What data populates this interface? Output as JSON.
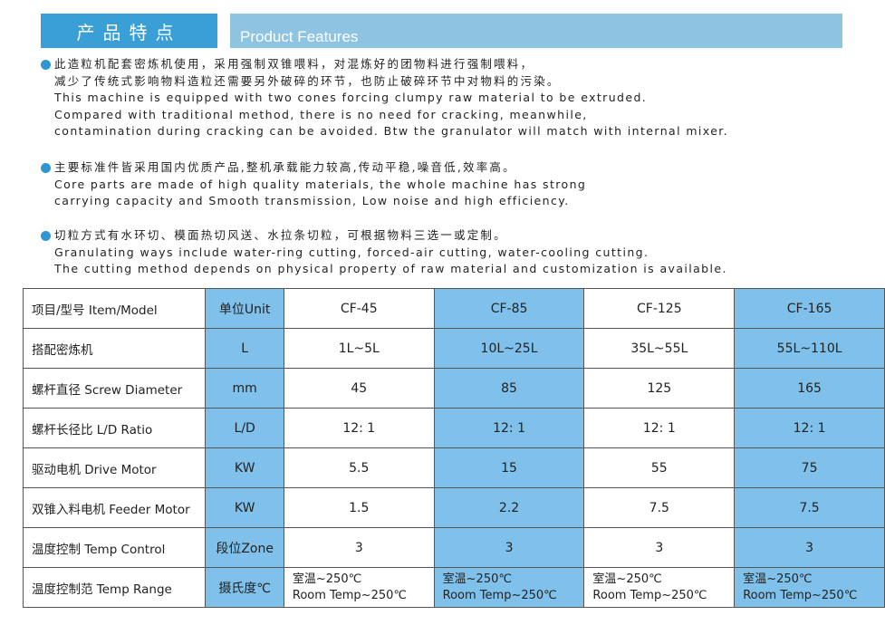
{
  "header": {
    "title_cn": "产品特点",
    "title_en": "Product Features"
  },
  "features": [
    {
      "lines": [
        "此造粒机配套密炼机使用，采用强制双锥喂料，对混炼好的团物料进行强制喂料，",
        "减少了传统式影响物料造粒还需要另外破碎的环节，也防止破碎环节中对物料的污染。",
        "This machine is equipped with two cones forcing clumpy raw material to be extruded.",
        "Compared with traditional method, there is no need for cracking, meanwhile,",
        "contamination during cracking can be avoided. Btw the granulator will match with internal mixer."
      ]
    },
    {
      "lines": [
        "主要标准件皆采用国内优质产品,整机承载能力较高,传动平稳,噪音低,效率高。",
        "Core parts are made of high quality materials, the whole machine has strong",
        "carrying capacity and Smooth transmission, Low noise and high efficiency."
      ]
    },
    {
      "lines": [
        "切粒方式有水环切、模面热切风送、水拉条切粒，可根据物料三选一或定制。",
        "Granulating ways include water-ring cutting, forced-air cutting, water-cooling cutting.",
        "The cutting method depends on physical property of raw material and customization is available."
      ]
    }
  ],
  "table": {
    "rows": [
      {
        "label": "项目/型号 Item/Model",
        "unit": "单位Unit",
        "values": [
          "CF-45",
          "CF-85",
          "CF-125",
          "CF-165"
        ]
      },
      {
        "label": "搭配密炼机",
        "unit": "L",
        "values": [
          "1L~5L",
          "10L~25L",
          "35L~55L",
          "55L~110L"
        ]
      },
      {
        "label": "螺杆直径 Screw Diameter",
        "unit": "mm",
        "values": [
          "45",
          "85",
          "125",
          "165"
        ]
      },
      {
        "label": "螺杆长径比 L/D Ratio",
        "unit": "L/D",
        "values": [
          "12: 1",
          "12: 1",
          "12: 1",
          "12: 1"
        ]
      },
      {
        "label": "驱动电机 Drive Motor",
        "unit": "KW",
        "values": [
          "5.5",
          "15",
          "55",
          "75"
        ]
      },
      {
        "label": "双锥入料电机 Feeder Motor",
        "unit": "KW",
        "values": [
          "1.5",
          "2.2",
          "7.5",
          "7.5"
        ]
      },
      {
        "label": "温度控制 Temp Control",
        "unit": "段位Zone",
        "values": [
          "3",
          "3",
          "3",
          "3"
        ]
      },
      {
        "label": "温度控制范 Temp Range",
        "unit": "摄氏度℃",
        "values": [
          "室温~250℃\nRoom Temp~250℃",
          "室温~250℃\nRoom Temp~250℃",
          "室温~250℃\nRoom Temp~250℃",
          "室温~250℃\nRoom Temp~250℃"
        ]
      }
    ]
  },
  "colors": {
    "header_dark": "#3a9fd6",
    "header_light": "#8ec4e2",
    "column_highlight": "#7fc1ea",
    "bullet": "#2f96d3"
  }
}
